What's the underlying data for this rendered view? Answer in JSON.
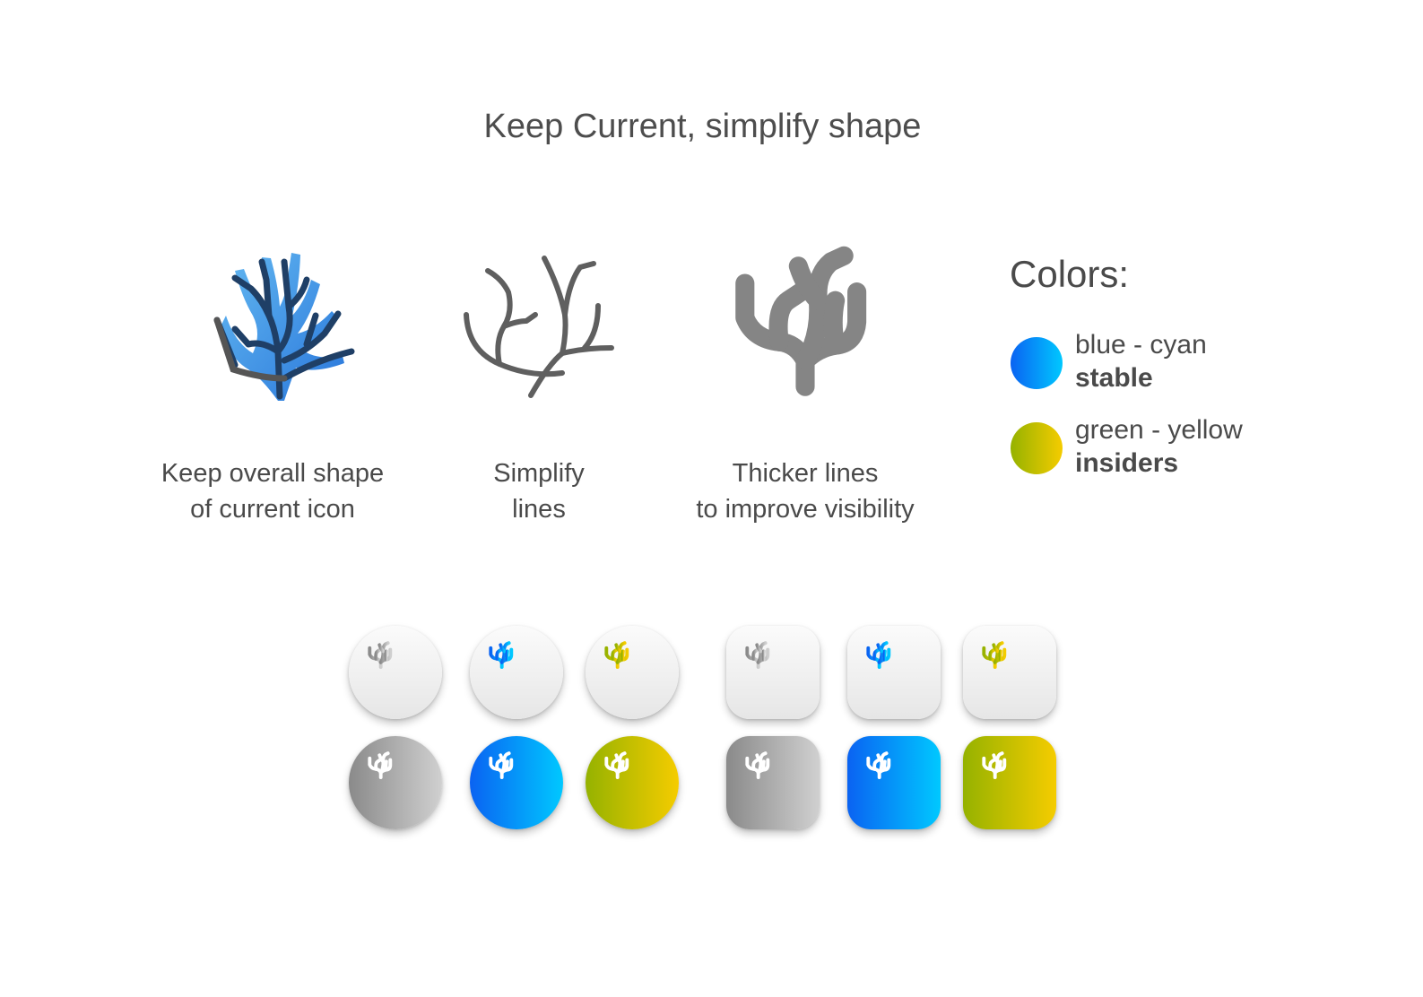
{
  "title": "Keep Current, simplify shape",
  "stages": [
    {
      "line1": "Keep overall shape",
      "line2": "of current icon",
      "icon": "coral-original-icon"
    },
    {
      "line1": "Simplify",
      "line2": "lines",
      "icon": "coral-outline-icon"
    },
    {
      "line1": "Thicker lines",
      "line2": "to improve visibility",
      "icon": "coral-thick-icon"
    }
  ],
  "colors": {
    "heading": "Colors:",
    "items": [
      {
        "name": "blue - cyan",
        "channel": "stable",
        "gradient": [
          "#0a63f2",
          "#00c8ff"
        ]
      },
      {
        "name": "green - yellow",
        "channel": "insiders",
        "gradient": [
          "#95b200",
          "#f5cc00"
        ]
      }
    ]
  },
  "icon_variants": {
    "shapes": [
      "circle",
      "rounded-square"
    ],
    "light_row": [
      "gray",
      "blue",
      "green"
    ],
    "dark_row": [
      "gray",
      "blue",
      "green"
    ],
    "palette": {
      "gray": [
        "#8a8a8a",
        "#d0d0d0"
      ],
      "blue": [
        "#0a63f2",
        "#00c8ff"
      ],
      "green": [
        "#95b200",
        "#f5cc00"
      ]
    }
  }
}
